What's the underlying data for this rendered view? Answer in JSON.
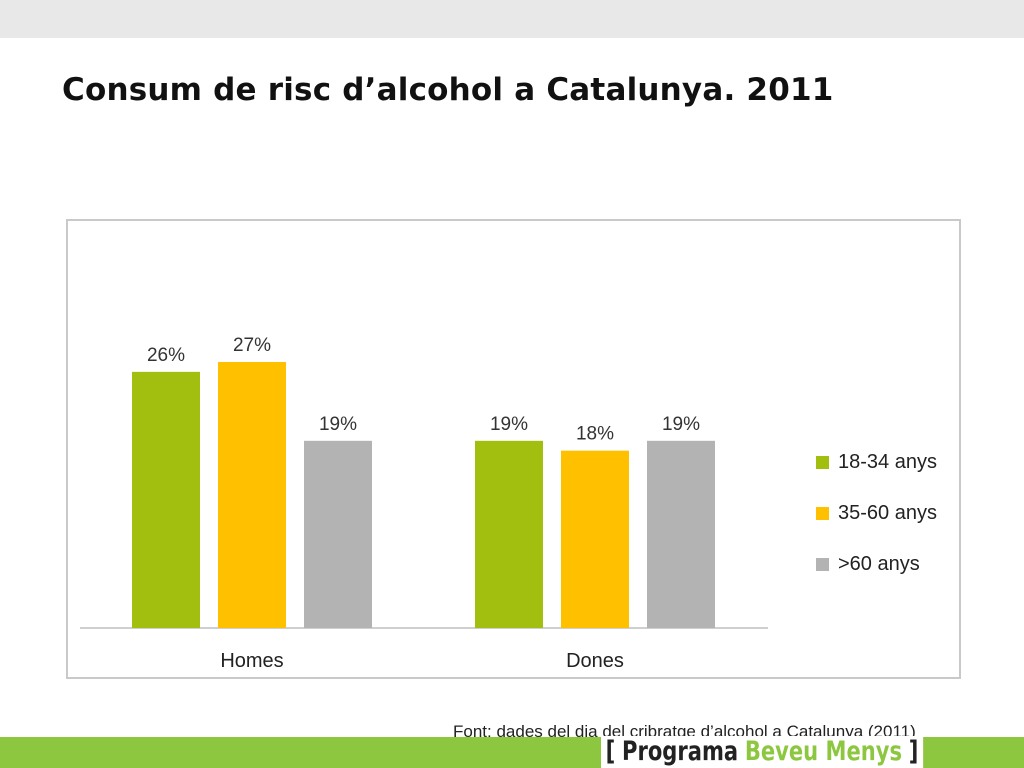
{
  "slide": {
    "title": "Consum de risc d’alcohol a Catalunya. 2011",
    "source": "Font: dades del dia del cribratge d’alcohol a Catalunya (2011)"
  },
  "branding": {
    "open_bracket": "[",
    "program": "Programa",
    "name": "Beveu Menys",
    "close_bracket": "]"
  },
  "colors": {
    "top_bar": "#e8e8e8",
    "bottom_band": "#8dc63f",
    "series_1": "#a2bf0f",
    "series_2": "#ffc000",
    "series_3": "#b3b3b3"
  },
  "chart_data": {
    "type": "bar",
    "categories": [
      "Homes",
      "Dones"
    ],
    "series": [
      {
        "name": "18-34 anys",
        "values": [
          26,
          19
        ],
        "labels": [
          "26%",
          "19%"
        ],
        "color": "#a2bf0f"
      },
      {
        "name": "35-60 anys",
        "values": [
          27,
          18
        ],
        "labels": [
          "27%",
          "18%"
        ],
        "color": "#ffc000"
      },
      {
        "name": ">60 anys",
        "values": [
          19,
          19
        ],
        "labels": [
          "19%",
          "19%"
        ],
        "color": "#b3b3b3"
      }
    ],
    "title": "",
    "xlabel": "",
    "ylabel": "",
    "ylim": [
      0,
      27
    ],
    "grid": false,
    "legend": "right"
  }
}
